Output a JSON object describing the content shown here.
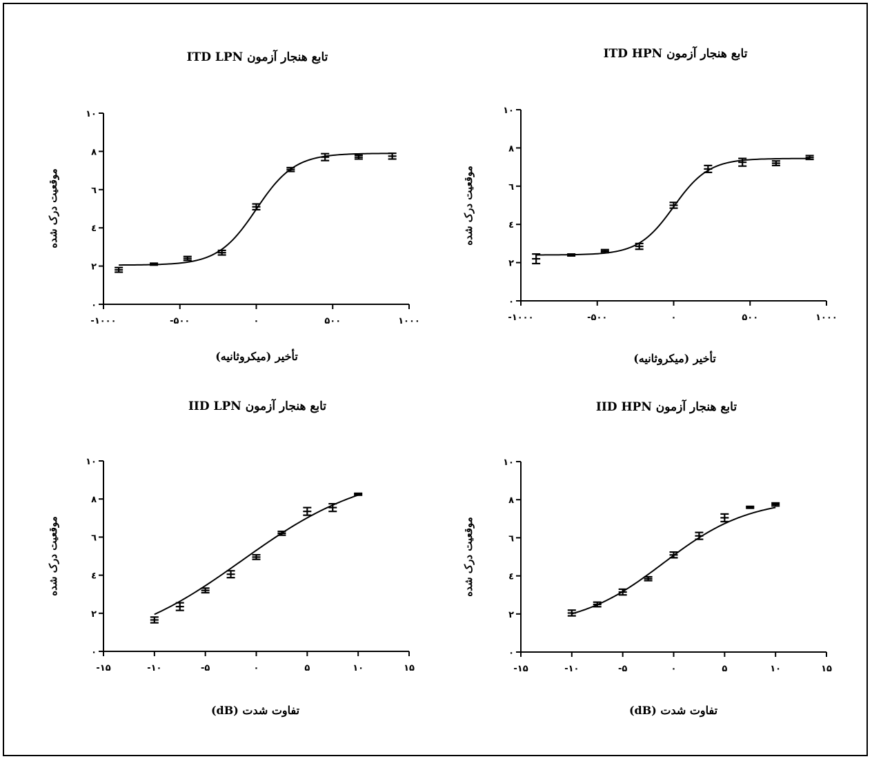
{
  "chart_data": [
    {
      "type": "line",
      "title": "تابع هنجار آزمون ITD LPN",
      "xlabel": "تأخیر (میکروثانیه)",
      "ylabel": "موقعیت درک شده",
      "xlim": [
        -1000,
        1000
      ],
      "ylim": [
        0,
        10
      ],
      "xticks": [
        -1000,
        -500,
        0,
        500,
        1000
      ],
      "xtick_labels": [
        "-۱۰۰۰",
        "-۵۰۰",
        "۰",
        "۵۰۰",
        "۱۰۰۰"
      ],
      "yticks": [
        0,
        2,
        4,
        6,
        8,
        10
      ],
      "ytick_labels": [
        "۰",
        "۲",
        "٤",
        "٦",
        "۸",
        "۱۰"
      ],
      "curve": {
        "type": "sigmoid",
        "bottom": 2.05,
        "top": 7.9,
        "x50": 0,
        "slope": 125
      },
      "points": [
        {
          "x": -900,
          "y": 1.8,
          "err": 0.12
        },
        {
          "x": -670,
          "y": 2.1,
          "err": 0.05
        },
        {
          "x": -450,
          "y": 2.4,
          "err": 0.1
        },
        {
          "x": -225,
          "y": 2.7,
          "err": 0.12
        },
        {
          "x": 0,
          "y": 5.1,
          "err": 0.15
        },
        {
          "x": 225,
          "y": 7.05,
          "err": 0.1
        },
        {
          "x": 450,
          "y": 7.7,
          "err": 0.18
        },
        {
          "x": 670,
          "y": 7.7,
          "err": 0.1
        },
        {
          "x": 890,
          "y": 7.75,
          "err": 0.15
        }
      ]
    },
    {
      "type": "line",
      "title": "تابع هنجار آزمون ITD HPN",
      "xlabel": "تأخیر (میکروثانیه)",
      "ylabel": "موقعیت درک شده",
      "xlim": [
        -1000,
        1000
      ],
      "ylim": [
        0,
        10
      ],
      "xticks": [
        -1000,
        -500,
        0,
        500,
        1000
      ],
      "xtick_labels": [
        "-۱۰۰۰",
        "-۵۰۰",
        "۰",
        "۵۰۰",
        "۱۰۰۰"
      ],
      "yticks": [
        0,
        2,
        4,
        6,
        8,
        10
      ],
      "ytick_labels": [
        "۰",
        "۲",
        "٤",
        "٦",
        "۸",
        "۱۰"
      ],
      "curve": {
        "type": "sigmoid",
        "bottom": 2.4,
        "top": 7.45,
        "x50": 0,
        "slope": 115
      },
      "points": [
        {
          "x": -900,
          "y": 2.2,
          "err": 0.25
        },
        {
          "x": -670,
          "y": 2.4,
          "err": 0.05
        },
        {
          "x": -450,
          "y": 2.6,
          "err": 0.08
        },
        {
          "x": -225,
          "y": 2.85,
          "err": 0.15
        },
        {
          "x": 0,
          "y": 5.0,
          "err": 0.15
        },
        {
          "x": 225,
          "y": 6.9,
          "err": 0.18
        },
        {
          "x": 450,
          "y": 7.25,
          "err": 0.2
        },
        {
          "x": 670,
          "y": 7.2,
          "err": 0.12
        },
        {
          "x": 890,
          "y": 7.5,
          "err": 0.1
        }
      ]
    },
    {
      "type": "line",
      "title": "تابع هنجار آزمون IID LPN",
      "xlabel": "تفاوت شدت (dB)",
      "ylabel": "موقعیت درک شده",
      "xlim": [
        -15,
        15
      ],
      "ylim": [
        0,
        10
      ],
      "xticks": [
        -15,
        -10,
        -5,
        0,
        5,
        10,
        15
      ],
      "xtick_labels": [
        "-۱۵",
        "-۱۰",
        "-۵",
        "۰",
        "۵",
        "۱۰",
        "۱۵"
      ],
      "yticks": [
        0,
        2,
        4,
        6,
        8,
        10
      ],
      "ytick_labels": [
        "۰",
        "۲",
        "٤",
        "٦",
        "۸",
        "۱۰"
      ],
      "curve": {
        "type": "sigmoid",
        "bottom": 0.0,
        "top": 9.55,
        "x50": -1.4,
        "slope": 6.3
      },
      "points": [
        {
          "x": -10,
          "y": 1.65,
          "err": 0.15
        },
        {
          "x": -7.5,
          "y": 2.35,
          "err": 0.2
        },
        {
          "x": -5,
          "y": 3.2,
          "err": 0.12
        },
        {
          "x": -2.5,
          "y": 4.05,
          "err": 0.18
        },
        {
          "x": 0,
          "y": 4.95,
          "err": 0.12
        },
        {
          "x": 2.5,
          "y": 6.2,
          "err": 0.1
        },
        {
          "x": 5,
          "y": 7.35,
          "err": 0.2
        },
        {
          "x": 7.5,
          "y": 7.55,
          "err": 0.2
        },
        {
          "x": 10,
          "y": 8.25,
          "err": 0.05
        }
      ]
    },
    {
      "type": "line",
      "title": "تابع هنجار آزمون IID HPN",
      "xlabel": "تفاوت شدت (dB)",
      "ylabel": "موقعیت درک شده",
      "xlim": [
        -15,
        15
      ],
      "ylim": [
        0,
        10
      ],
      "xticks": [
        -15,
        -10,
        -5,
        0,
        5,
        10,
        15
      ],
      "xtick_labels": [
        "-۱۵",
        "-۱۰",
        "-۵",
        "۰",
        "۵",
        "۱۰",
        "۱۵"
      ],
      "yticks": [
        0,
        2,
        4,
        6,
        8,
        10
      ],
      "ytick_labels": [
        "۰",
        "۲",
        "٤",
        "٦",
        "۸",
        "۱۰"
      ],
      "curve": {
        "type": "sigmoid",
        "bottom": 1.3,
        "top": 8.05,
        "x50": -1.0,
        "slope": 4.2
      },
      "points": [
        {
          "x": -10,
          "y": 2.05,
          "err": 0.15
        },
        {
          "x": -7.5,
          "y": 2.5,
          "err": 0.12
        },
        {
          "x": -5,
          "y": 3.15,
          "err": 0.15
        },
        {
          "x": -2.5,
          "y": 3.85,
          "err": 0.1
        },
        {
          "x": 0,
          "y": 5.1,
          "err": 0.15
        },
        {
          "x": 2.5,
          "y": 6.1,
          "err": 0.18
        },
        {
          "x": 5,
          "y": 7.05,
          "err": 0.2
        },
        {
          "x": 7.5,
          "y": 7.6,
          "err": 0.05
        },
        {
          "x": 10,
          "y": 7.75,
          "err": 0.08
        }
      ]
    }
  ]
}
